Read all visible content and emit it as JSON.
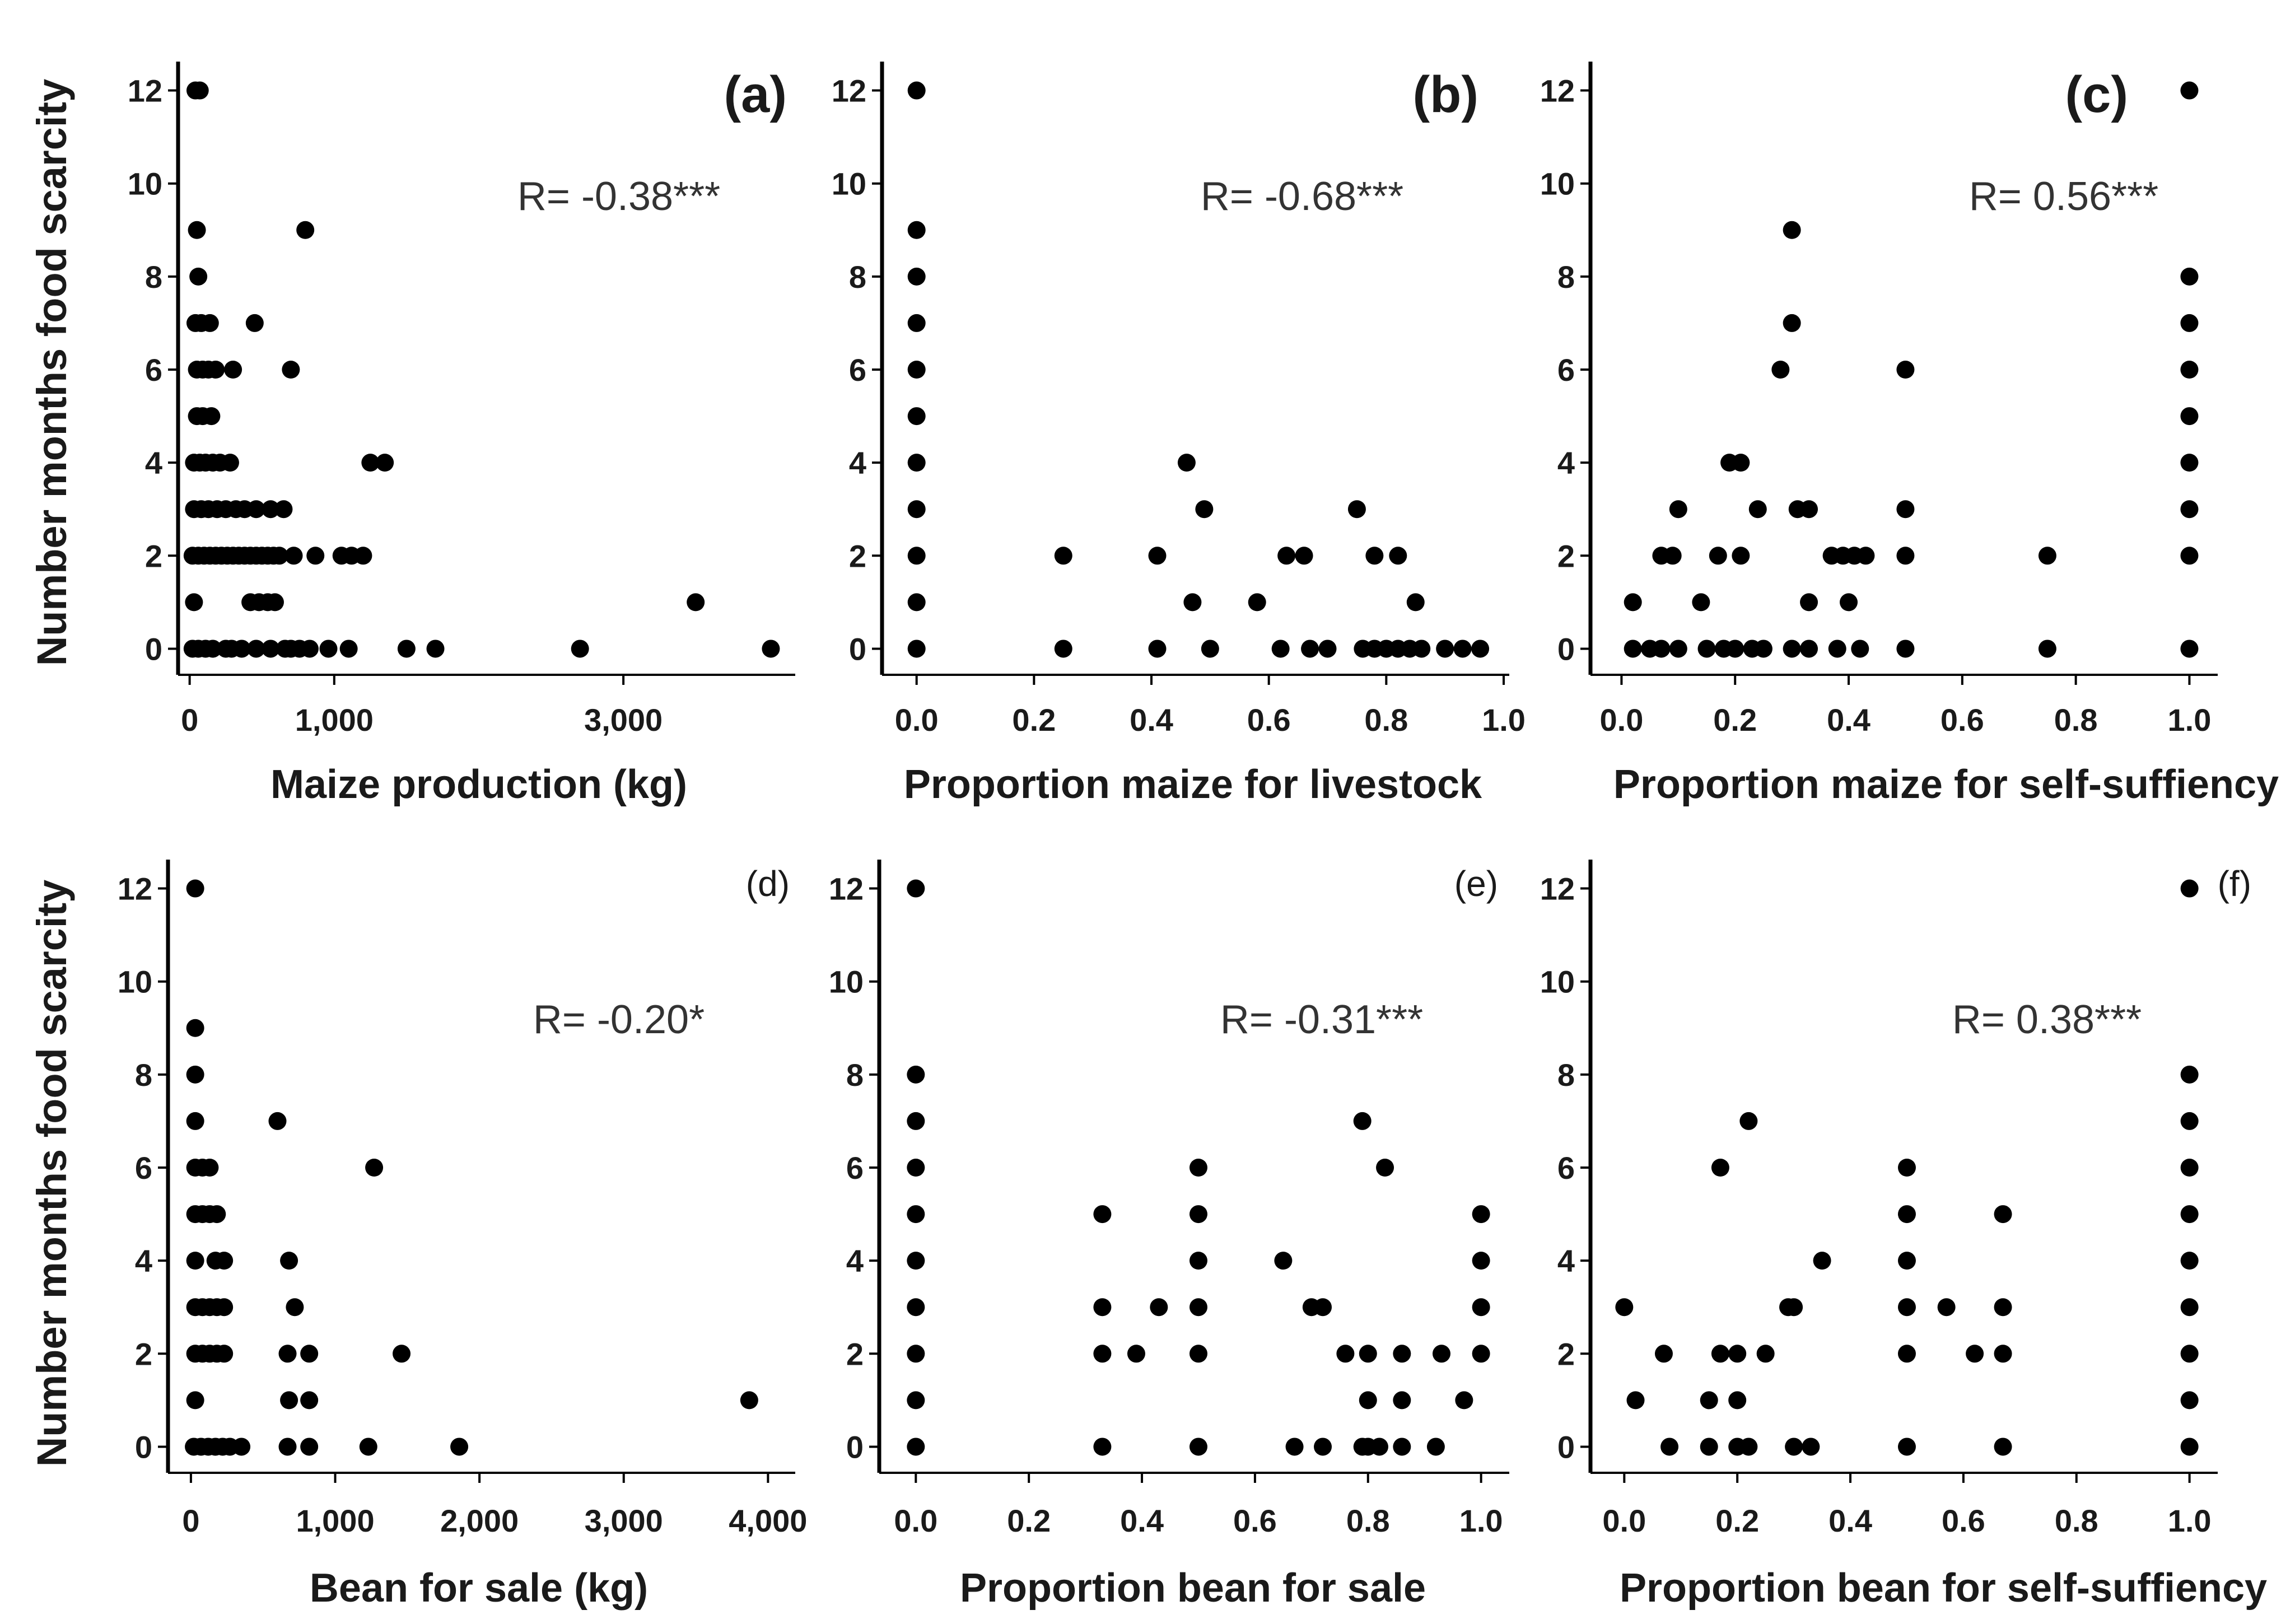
{
  "figure": {
    "ylabel_top": "Number months food scarcity",
    "ylabel_bottom": "Number months food scarcity"
  },
  "colors": {
    "point": "#000000",
    "axis": "#000000",
    "text": "#1a1a1a"
  },
  "chart_data": [
    {
      "type": "scatter",
      "panel": "(a)",
      "xlabel": "Maize production (kg)",
      "ylabel": "Number months food scarcity",
      "annotation": "R= -0.38***",
      "xticks": [
        0,
        1000,
        3000
      ],
      "xtick_labels": [
        "0",
        "1,000",
        "3,000"
      ],
      "yticks": [
        0,
        2,
        4,
        6,
        8,
        10,
        12
      ],
      "xlim": [
        -80,
        4150
      ],
      "ylim": [
        -0.5,
        12.5
      ],
      "points": [
        [
          40,
          12
        ],
        [
          70,
          12
        ],
        [
          50,
          9
        ],
        [
          60,
          8
        ],
        [
          40,
          7
        ],
        [
          80,
          7
        ],
        [
          140,
          7
        ],
        [
          450,
          7
        ],
        [
          800,
          9
        ],
        [
          700,
          6
        ],
        [
          50,
          6
        ],
        [
          90,
          6
        ],
        [
          130,
          6
        ],
        [
          180,
          6
        ],
        [
          300,
          6
        ],
        [
          50,
          5
        ],
        [
          90,
          5
        ],
        [
          150,
          5
        ],
        [
          30,
          4
        ],
        [
          70,
          4
        ],
        [
          110,
          4
        ],
        [
          160,
          4
        ],
        [
          210,
          4
        ],
        [
          280,
          4
        ],
        [
          1250,
          4
        ],
        [
          1350,
          4
        ],
        [
          30,
          3
        ],
        [
          80,
          3
        ],
        [
          130,
          3
        ],
        [
          190,
          3
        ],
        [
          250,
          3
        ],
        [
          320,
          3
        ],
        [
          380,
          3
        ],
        [
          460,
          3
        ],
        [
          560,
          3
        ],
        [
          650,
          3
        ],
        [
          20,
          2
        ],
        [
          60,
          2
        ],
        [
          100,
          2
        ],
        [
          140,
          2
        ],
        [
          180,
          2
        ],
        [
          220,
          2
        ],
        [
          260,
          2
        ],
        [
          300,
          2
        ],
        [
          340,
          2
        ],
        [
          380,
          2
        ],
        [
          420,
          2
        ],
        [
          460,
          2
        ],
        [
          500,
          2
        ],
        [
          540,
          2
        ],
        [
          580,
          2
        ],
        [
          620,
          2
        ],
        [
          720,
          2
        ],
        [
          870,
          2
        ],
        [
          1050,
          2
        ],
        [
          1120,
          2
        ],
        [
          1200,
          2
        ],
        [
          30,
          1
        ],
        [
          420,
          1
        ],
        [
          480,
          1
        ],
        [
          540,
          1
        ],
        [
          590,
          1
        ],
        [
          3500,
          1
        ],
        [
          20,
          0
        ],
        [
          60,
          0
        ],
        [
          110,
          0
        ],
        [
          160,
          0
        ],
        [
          250,
          0
        ],
        [
          290,
          0
        ],
        [
          360,
          0
        ],
        [
          460,
          0
        ],
        [
          560,
          0
        ],
        [
          660,
          0
        ],
        [
          700,
          0
        ],
        [
          760,
          0
        ],
        [
          830,
          0
        ],
        [
          960,
          0
        ],
        [
          1100,
          0
        ],
        [
          1500,
          0
        ],
        [
          1700,
          0
        ],
        [
          2700,
          0
        ],
        [
          4020,
          0
        ]
      ]
    },
    {
      "type": "scatter",
      "panel": "(b)",
      "xlabel": "Proportion maize for livestock",
      "ylabel": "Number months food scarcity",
      "annotation": "R= -0.68***",
      "xticks": [
        0,
        0.2,
        0.4,
        0.6,
        0.8,
        1.0
      ],
      "xtick_labels": [
        "0.0",
        "0.2",
        "0.4",
        "0.6",
        "0.8",
        "1.0"
      ],
      "yticks": [
        0,
        2,
        4,
        6,
        8,
        10,
        12
      ],
      "xlim": [
        -0.035,
        1.0
      ],
      "ylim": [
        -0.5,
        12.5
      ],
      "points": [
        [
          0.0,
          12
        ],
        [
          0.0,
          9
        ],
        [
          0.0,
          8
        ],
        [
          0.0,
          7
        ],
        [
          0.0,
          6
        ],
        [
          0.0,
          5
        ],
        [
          0.0,
          4
        ],
        [
          0.0,
          3
        ],
        [
          0.0,
          2
        ],
        [
          0.0,
          1
        ],
        [
          0.0,
          0
        ],
        [
          0.25,
          2
        ],
        [
          0.25,
          0
        ],
        [
          0.41,
          2
        ],
        [
          0.41,
          0
        ],
        [
          0.46,
          4
        ],
        [
          0.47,
          1
        ],
        [
          0.49,
          3
        ],
        [
          0.5,
          0
        ],
        [
          0.58,
          1
        ],
        [
          0.62,
          0
        ],
        [
          0.63,
          2
        ],
        [
          0.66,
          2
        ],
        [
          0.67,
          0
        ],
        [
          0.7,
          0
        ],
        [
          0.75,
          3
        ],
        [
          0.78,
          2
        ],
        [
          0.82,
          2
        ],
        [
          0.85,
          1
        ],
        [
          0.76,
          0
        ],
        [
          0.78,
          0
        ],
        [
          0.8,
          0
        ],
        [
          0.82,
          0
        ],
        [
          0.84,
          0
        ],
        [
          0.86,
          0
        ],
        [
          0.9,
          0
        ],
        [
          0.93,
          0
        ],
        [
          0.96,
          0
        ]
      ]
    },
    {
      "type": "scatter",
      "panel": "(c)",
      "xlabel": "Proportion maize for self-suffiency",
      "ylabel": "Number months food scarcity",
      "annotation": "R= 0.56***",
      "xticks": [
        0,
        0.2,
        0.4,
        0.6,
        0.8,
        1.0
      ],
      "xtick_labels": [
        "0.0",
        "0.2",
        "0.4",
        "0.6",
        "0.8",
        "1.0"
      ],
      "yticks": [
        0,
        2,
        4,
        6,
        8,
        10,
        12
      ],
      "xlim": [
        -0.03,
        1.04
      ],
      "ylim": [
        -0.5,
        12.5
      ],
      "points": [
        [
          1.0,
          12
        ],
        [
          1.0,
          8
        ],
        [
          1.0,
          7
        ],
        [
          1.0,
          6
        ],
        [
          1.0,
          5
        ],
        [
          1.0,
          4
        ],
        [
          1.0,
          3
        ],
        [
          1.0,
          2
        ],
        [
          1.0,
          0
        ],
        [
          0.3,
          9
        ],
        [
          0.3,
          7
        ],
        [
          0.28,
          6
        ],
        [
          0.5,
          6
        ],
        [
          0.19,
          4
        ],
        [
          0.21,
          4
        ],
        [
          0.1,
          3
        ],
        [
          0.24,
          3
        ],
        [
          0.31,
          3
        ],
        [
          0.33,
          3
        ],
        [
          0.5,
          3
        ],
        [
          0.07,
          2
        ],
        [
          0.09,
          2
        ],
        [
          0.17,
          2
        ],
        [
          0.21,
          2
        ],
        [
          0.37,
          2
        ],
        [
          0.39,
          2
        ],
        [
          0.41,
          2
        ],
        [
          0.43,
          2
        ],
        [
          0.5,
          2
        ],
        [
          0.75,
          2
        ],
        [
          0.02,
          1
        ],
        [
          0.14,
          1
        ],
        [
          0.33,
          1
        ],
        [
          0.4,
          1
        ],
        [
          0.02,
          0
        ],
        [
          0.05,
          0
        ],
        [
          0.07,
          0
        ],
        [
          0.1,
          0
        ],
        [
          0.15,
          0
        ],
        [
          0.18,
          0
        ],
        [
          0.2,
          0
        ],
        [
          0.23,
          0
        ],
        [
          0.25,
          0
        ],
        [
          0.3,
          0
        ],
        [
          0.33,
          0
        ],
        [
          0.38,
          0
        ],
        [
          0.42,
          0
        ],
        [
          0.5,
          0
        ],
        [
          0.75,
          0
        ]
      ]
    },
    {
      "type": "scatter",
      "panel": "(d)",
      "xlabel": "Bean for sale (kg)",
      "ylabel": "Number months food scarcity",
      "annotation": "R= -0.20*",
      "xticks": [
        0,
        1000,
        2000,
        3000,
        4000
      ],
      "xtick_labels": [
        "0",
        "1,000",
        "2,000",
        "3,000",
        "4,000"
      ],
      "yticks": [
        0,
        2,
        4,
        6,
        8,
        10,
        12
      ],
      "xlim": [
        -120,
        4150
      ],
      "ylim": [
        -0.5,
        12.5
      ],
      "points": [
        [
          30,
          12
        ],
        [
          30,
          9
        ],
        [
          30,
          8
        ],
        [
          30,
          7
        ],
        [
          30,
          6
        ],
        [
          80,
          6
        ],
        [
          130,
          6
        ],
        [
          30,
          5
        ],
        [
          80,
          5
        ],
        [
          130,
          5
        ],
        [
          180,
          5
        ],
        [
          30,
          4
        ],
        [
          170,
          4
        ],
        [
          230,
          4
        ],
        [
          30,
          3
        ],
        [
          80,
          3
        ],
        [
          130,
          3
        ],
        [
          180,
          3
        ],
        [
          230,
          3
        ],
        [
          30,
          2
        ],
        [
          80,
          2
        ],
        [
          130,
          2
        ],
        [
          180,
          2
        ],
        [
          230,
          2
        ],
        [
          30,
          1
        ],
        [
          20,
          0
        ],
        [
          70,
          0
        ],
        [
          120,
          0
        ],
        [
          170,
          0
        ],
        [
          220,
          0
        ],
        [
          270,
          0
        ],
        [
          350,
          0
        ],
        [
          600,
          7
        ],
        [
          1270,
          6
        ],
        [
          680,
          4
        ],
        [
          720,
          3
        ],
        [
          670,
          2
        ],
        [
          820,
          2
        ],
        [
          1460,
          2
        ],
        [
          680,
          1
        ],
        [
          820,
          1
        ],
        [
          3870,
          1
        ],
        [
          670,
          0
        ],
        [
          820,
          0
        ],
        [
          1230,
          0
        ],
        [
          1860,
          0
        ]
      ]
    },
    {
      "type": "scatter",
      "panel": "(e)",
      "xlabel": "Proportion bean for sale",
      "ylabel": "Number months food scarcity",
      "annotation": "R= -0.31***",
      "xticks": [
        0,
        0.2,
        0.4,
        0.6,
        0.8,
        1.0
      ],
      "xtick_labels": [
        "0.0",
        "0.2",
        "0.4",
        "0.6",
        "0.8",
        "1.0"
      ],
      "yticks": [
        0,
        2,
        4,
        6,
        8,
        10,
        12
      ],
      "xlim": [
        -0.035,
        1.04
      ],
      "ylim": [
        -0.5,
        12.5
      ],
      "points": [
        [
          0.0,
          12
        ],
        [
          0.0,
          8
        ],
        [
          0.0,
          7
        ],
        [
          0.0,
          6
        ],
        [
          0.0,
          5
        ],
        [
          0.0,
          4
        ],
        [
          0.0,
          3
        ],
        [
          0.0,
          2
        ],
        [
          0.0,
          1
        ],
        [
          0.0,
          0
        ],
        [
          0.33,
          5
        ],
        [
          0.33,
          3
        ],
        [
          0.33,
          2
        ],
        [
          0.39,
          2
        ],
        [
          0.33,
          0
        ],
        [
          0.43,
          3
        ],
        [
          0.5,
          6
        ],
        [
          0.5,
          5
        ],
        [
          0.5,
          4
        ],
        [
          0.5,
          3
        ],
        [
          0.5,
          2
        ],
        [
          0.5,
          0
        ],
        [
          0.65,
          4
        ],
        [
          0.7,
          3
        ],
        [
          0.72,
          3
        ],
        [
          0.67,
          0
        ],
        [
          0.72,
          0
        ],
        [
          0.76,
          2
        ],
        [
          0.79,
          7
        ],
        [
          0.83,
          6
        ],
        [
          0.8,
          2
        ],
        [
          0.8,
          1
        ],
        [
          0.8,
          0
        ],
        [
          0.86,
          2
        ],
        [
          0.86,
          1
        ],
        [
          0.86,
          0
        ],
        [
          0.93,
          2
        ],
        [
          0.92,
          0
        ],
        [
          0.97,
          1
        ],
        [
          1.0,
          5
        ],
        [
          1.0,
          4
        ],
        [
          1.0,
          3
        ],
        [
          1.0,
          2
        ],
        [
          0.79,
          0
        ],
        [
          0.82,
          0
        ]
      ]
    },
    {
      "type": "scatter",
      "panel": "(f)",
      "xlabel": "Proportion bean for self-suffiency",
      "ylabel": "Number months food scarcity",
      "annotation": "R= 0.38***",
      "xticks": [
        0,
        0.2,
        0.4,
        0.6,
        0.8,
        1.0
      ],
      "xtick_labels": [
        "0.0",
        "0.2",
        "0.4",
        "0.6",
        "0.8",
        "1.0"
      ],
      "yticks": [
        0,
        2,
        4,
        6,
        8,
        10,
        12
      ],
      "xlim": [
        -0.035,
        1.04
      ],
      "ylim": [
        -0.5,
        12.5
      ],
      "points": [
        [
          1.0,
          12
        ],
        [
          1.0,
          8
        ],
        [
          1.0,
          7
        ],
        [
          1.0,
          6
        ],
        [
          1.0,
          5
        ],
        [
          1.0,
          4
        ],
        [
          1.0,
          3
        ],
        [
          1.0,
          2
        ],
        [
          1.0,
          1
        ],
        [
          1.0,
          0
        ],
        [
          0.0,
          3
        ],
        [
          0.02,
          1
        ],
        [
          0.07,
          2
        ],
        [
          0.08,
          0
        ],
        [
          0.15,
          1
        ],
        [
          0.15,
          0
        ],
        [
          0.17,
          6
        ],
        [
          0.17,
          2
        ],
        [
          0.2,
          2
        ],
        [
          0.2,
          1
        ],
        [
          0.2,
          0
        ],
        [
          0.22,
          7
        ],
        [
          0.22,
          0
        ],
        [
          0.25,
          2
        ],
        [
          0.29,
          3
        ],
        [
          0.3,
          3
        ],
        [
          0.3,
          0
        ],
        [
          0.33,
          0
        ],
        [
          0.35,
          4
        ],
        [
          0.5,
          6
        ],
        [
          0.5,
          5
        ],
        [
          0.5,
          4
        ],
        [
          0.5,
          3
        ],
        [
          0.5,
          2
        ],
        [
          0.5,
          0
        ],
        [
          0.57,
          3
        ],
        [
          0.62,
          2
        ],
        [
          0.67,
          5
        ],
        [
          0.67,
          3
        ],
        [
          0.67,
          2
        ],
        [
          0.67,
          0
        ]
      ]
    }
  ]
}
